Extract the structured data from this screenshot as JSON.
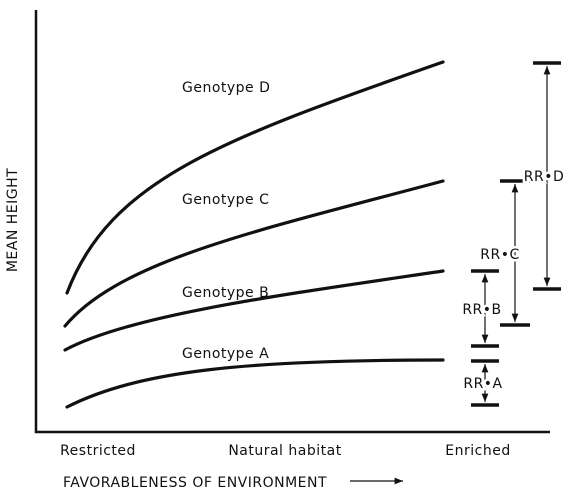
{
  "y_axis_label": "MEAN HEIGHT",
  "x_axis_label": "FAVORABLENESS OF ENVIRONMENT",
  "x_labels": [
    "Restricted",
    "Natural habitat",
    "Enriched"
  ],
  "curves": [
    {
      "label": "Genotype D",
      "range_label": "RR•D"
    },
    {
      "label": "Genotype C",
      "range_label": "RR•C"
    },
    {
      "label": "Genotype B",
      "range_label": "RR•B"
    },
    {
      "label": "Genotype A",
      "range_label": "RR•A"
    }
  ]
}
